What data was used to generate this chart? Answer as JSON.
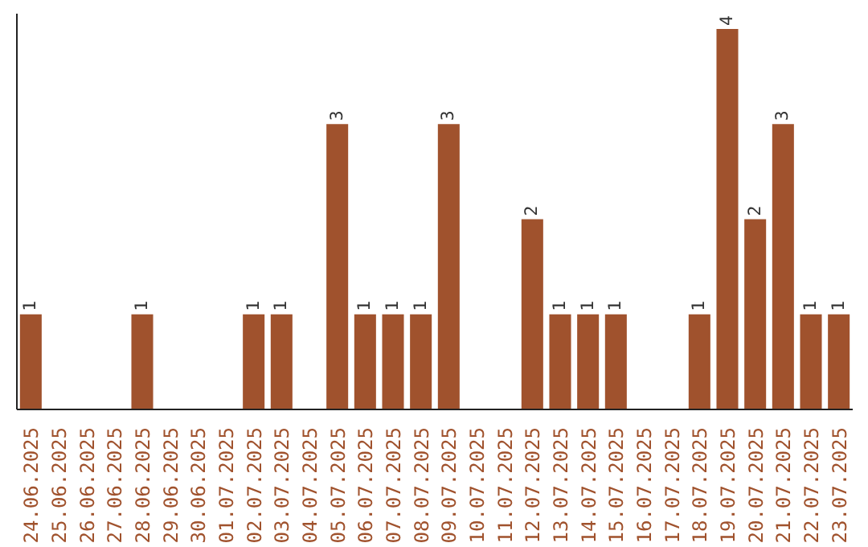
{
  "chart_data": {
    "type": "bar",
    "categories": [
      "24.06.2025",
      "25.06.2025",
      "26.06.2025",
      "27.06.2025",
      "28.06.2025",
      "29.06.2025",
      "30.06.2025",
      "01.07.2025",
      "02.07.2025",
      "03.07.2025",
      "04.07.2025",
      "05.07.2025",
      "06.07.2025",
      "07.07.2025",
      "08.07.2025",
      "09.07.2025",
      "10.07.2025",
      "11.07.2025",
      "12.07.2025",
      "13.07.2025",
      "14.07.2025",
      "15.07.2025",
      "16.07.2025",
      "17.07.2025",
      "18.07.2025",
      "19.07.2025",
      "20.07.2025",
      "21.07.2025",
      "22.07.2025",
      "23.07.2025"
    ],
    "values": [
      1,
      0,
      0,
      0,
      1,
      0,
      0,
      0,
      1,
      1,
      0,
      3,
      1,
      1,
      1,
      3,
      0,
      0,
      2,
      1,
      1,
      1,
      0,
      0,
      1,
      4,
      2,
      3,
      1,
      1
    ],
    "value_labels": [
      "1",
      null,
      null,
      null,
      "1",
      null,
      null,
      null,
      "1",
      "1",
      null,
      "3",
      "1",
      "1",
      "1",
      "3",
      null,
      null,
      "2",
      "1",
      "1",
      "1",
      null,
      null,
      "1",
      "4",
      "2",
      "3",
      "1",
      "1"
    ],
    "color": "#a0522d",
    "tick_labels": "x"
  }
}
